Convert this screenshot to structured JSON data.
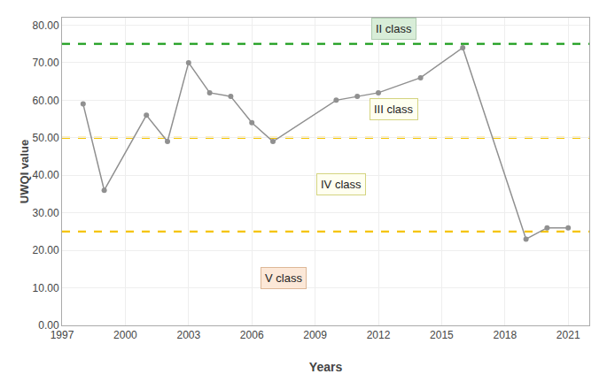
{
  "chart_data": {
    "type": "line",
    "x": [
      1998,
      1999,
      2001,
      2002,
      2003,
      2004,
      2005,
      2006,
      2007,
      2010,
      2011,
      2012,
      2014,
      2016,
      2019,
      2020,
      2021
    ],
    "values": [
      59,
      36,
      56,
      49,
      70,
      62,
      61,
      54,
      49,
      60,
      61,
      62,
      66,
      74,
      23,
      26,
      26
    ],
    "color": "#909090",
    "marker": "circle",
    "xlabel": "Years",
    "ylabel": "UWQI value",
    "xlim": [
      1997,
      2022
    ],
    "ylim": [
      0.0,
      82.0
    ],
    "xticks": [
      1997,
      2000,
      2003,
      2006,
      2009,
      2012,
      2015,
      2018,
      2021
    ],
    "yticks": [
      {
        "value": 0,
        "label": "0.00"
      },
      {
        "value": 10,
        "label": "10.00"
      },
      {
        "value": 20,
        "label": "20.00"
      },
      {
        "value": 30,
        "label": "30.00"
      },
      {
        "value": 40,
        "label": "40.00"
      },
      {
        "value": 50,
        "label": "50.00"
      },
      {
        "value": 60,
        "label": "60.00"
      },
      {
        "value": 70,
        "label": "70.00"
      },
      {
        "value": 80,
        "label": "80.00"
      }
    ],
    "grid": true,
    "hlines": [
      {
        "value": 75,
        "color": "#1a9c1a",
        "line_style": "dashed"
      },
      {
        "value": 50,
        "color": "#f5c400",
        "line_style": "dashed"
      },
      {
        "value": 25,
        "color": "#f5c400",
        "line_style": "dashed"
      }
    ],
    "annotations": [
      "II class",
      "III class",
      "IV class",
      "V class"
    ]
  }
}
